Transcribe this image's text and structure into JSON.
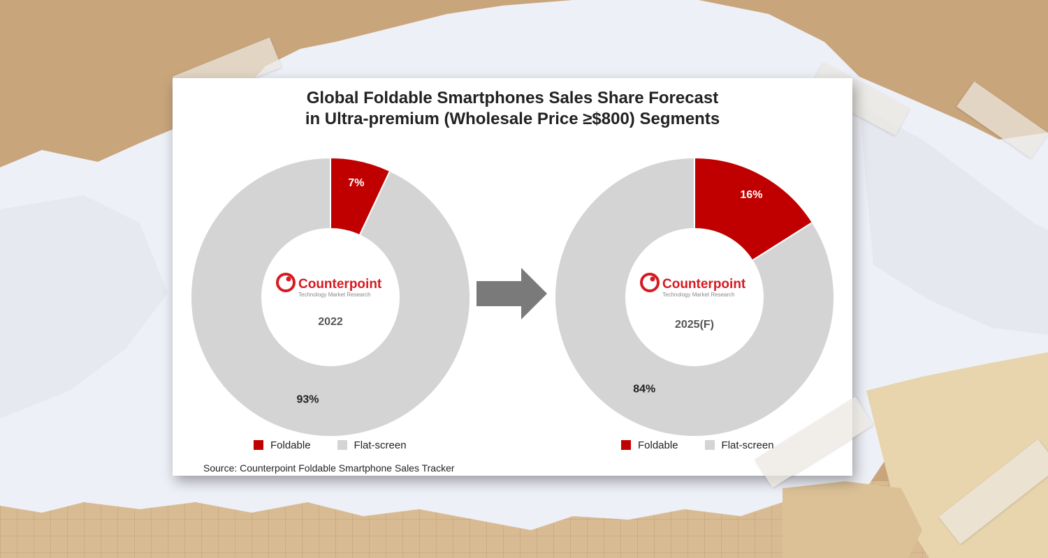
{
  "chart_data": [
    {
      "type": "pie",
      "center_label": "2022",
      "categories": [
        "Foldable",
        "Flat-screen"
      ],
      "values": [
        7,
        93
      ],
      "data_labels": [
        "7%",
        "93%"
      ],
      "colors": [
        "#c00000",
        "#d4d4d4"
      ]
    },
    {
      "type": "pie",
      "center_label": "2025(F)",
      "categories": [
        "Foldable",
        "Flat-screen"
      ],
      "values": [
        16,
        84
      ],
      "data_labels": [
        "16%",
        "84%"
      ],
      "colors": [
        "#c00000",
        "#d4d4d4"
      ]
    }
  ],
  "title": {
    "line1": "Global Foldable Smartphones Sales Share Forecast",
    "line2": "in Ultra-premium (Wholesale Price ≥$800) Segments"
  },
  "legend": {
    "left": [
      "Foldable",
      "Flat-screen"
    ],
    "right": [
      "Foldable",
      "Flat-screen"
    ]
  },
  "logo": {
    "name": "Counterpoint",
    "tagline": "Technology Market Research",
    "color": "#d71920"
  },
  "source": "Source: Counterpoint Foldable Smartphone Sales Tracker",
  "arrow_icon": "right-arrow-icon",
  "colors": {
    "foldable": "#c00000",
    "flat_screen": "#d4d4d4",
    "arrow": "#7a7a7a"
  }
}
